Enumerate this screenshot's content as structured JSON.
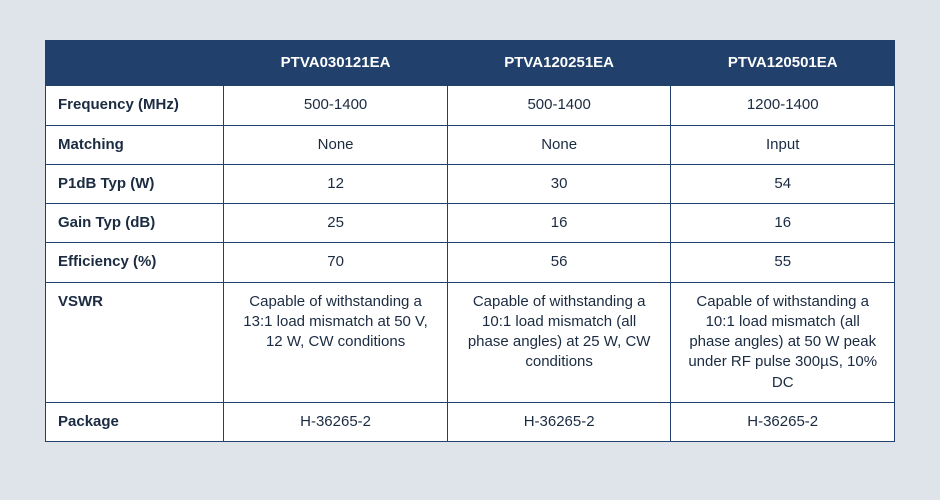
{
  "table": {
    "header_bg": "#21406b",
    "header_fg": "#ffffff",
    "border_color": "#21406b",
    "cell_bg": "#ffffff",
    "page_bg": "#dfe3ea",
    "columns": [
      "",
      "PTVA030121EA",
      "PTVA120251EA",
      "PTVA120501EA"
    ],
    "rows": [
      {
        "label": "Frequency (MHz)",
        "cells": [
          "500-1400",
          "500-1400",
          "1200-1400"
        ]
      },
      {
        "label": "Matching",
        "cells": [
          "None",
          "None",
          "Input"
        ]
      },
      {
        "label": "P1dB Typ (W)",
        "cells": [
          "12",
          "30",
          "54"
        ]
      },
      {
        "label": "Gain Typ (dB)",
        "cells": [
          "25",
          "16",
          "16"
        ]
      },
      {
        "label": "Efficiency (%)",
        "cells": [
          "70",
          "56",
          "55"
        ]
      },
      {
        "label": "VSWR",
        "cells": [
          "Capable of withstanding a 13:1 load mismatch at 50 V, 12 W, CW conditions",
          "Capable of withstanding a 10:1 load mismatch (all phase angles) at 25 W, CW conditions",
          "Capable of withstanding a 10:1 load mismatch (all phase angles) at 50 W peak under RF pulse 300µS, 10%  DC"
        ]
      },
      {
        "label": "Package",
        "cells": [
          "H-36265-2",
          "H-36265-2",
          "H-36265-2"
        ]
      }
    ]
  }
}
